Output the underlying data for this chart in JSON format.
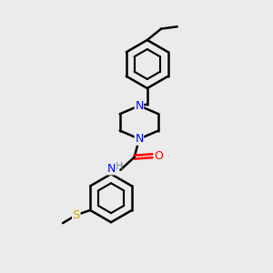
{
  "background_color": "#ebebeb",
  "atom_colors": {
    "N": "#0000ff",
    "O": "#ff0000",
    "S": "#ccaa00",
    "C": "#000000",
    "H": "#5a8a8a"
  },
  "bond_color": "#000000",
  "bond_width": 1.8,
  "figsize": [
    3.0,
    3.0
  ],
  "dpi": 100
}
